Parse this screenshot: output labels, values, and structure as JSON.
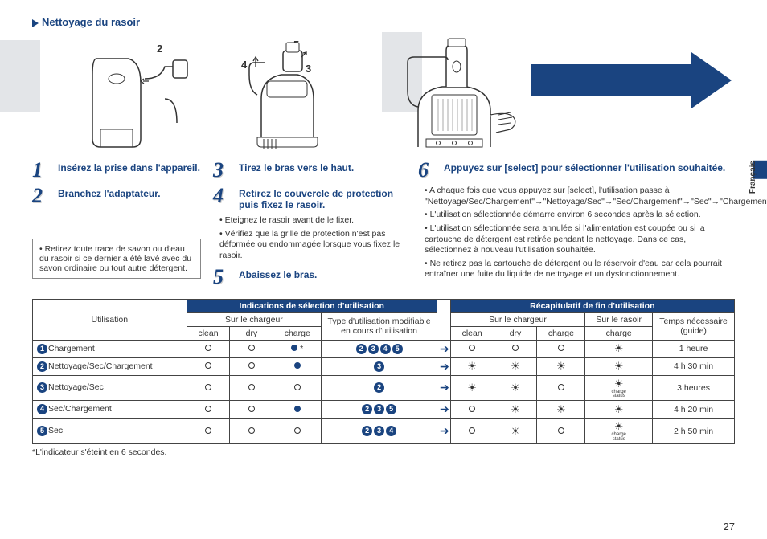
{
  "title": "Nettoyage du rasoir",
  "language_tab": "Français",
  "page_number": "27",
  "illus_labels": {
    "n1": "1",
    "n2": "2",
    "n3": "3",
    "n4": "4",
    "n5": "5"
  },
  "steps": {
    "s1": {
      "num": "1",
      "text": "Insérez la prise dans l'appareil."
    },
    "s2": {
      "num": "2",
      "text": "Branchez l'adaptateur."
    },
    "s3": {
      "num": "3",
      "text": "Tirez le bras vers le haut."
    },
    "s4": {
      "num": "4",
      "text": "Retirez le couvercle de protection puis fixez le rasoir."
    },
    "s5": {
      "num": "5",
      "text": "Abaissez le bras."
    },
    "s6": {
      "num": "6",
      "text": "Appuyez sur [select] pour sélectionner l'utilisation souhaitée."
    }
  },
  "note_box": "Retirez toute trace de savon ou d'eau du rasoir si ce dernier a été lavé avec du savon ordinaire ou tout autre détergent.",
  "col2_bullets": [
    "Eteignez le rasoir avant de le fixer.",
    "Vérifiez que la grille de protection n'est pas déformée ou endommagée lorsque vous fixez le rasoir."
  ],
  "col3_bullets": [
    "A chaque fois que vous appuyez sur [select], l'utilisation passe à \"Nettoyage/Sec/Chargement\"→\"Nettoyage/Sec\"→\"Sec/Chargement\"→\"Sec\"→\"Chargement\".",
    "L'utilisation sélectionnée démarre environ 6 secondes après la sélection.",
    "L'utilisation sélectionnée sera annulée si l'alimentation est coupée ou si la cartouche de détergent est retirée pendant le nettoyage. Dans ce cas, sélectionnez à nouveau l'utilisation souhaitée.",
    "Ne retirez pas la cartouche de détergent ou le réservoir d'eau car cela pourrait entraîner une fuite du liquide de nettoyage et un dysfonctionnement."
  ],
  "table": {
    "header_left": "Indications de sélection d'utilisation",
    "header_right": "Récapitulatif de fin d'utilisation",
    "utilisation": "Utilisation",
    "sur_chargeur": "Sur le chargeur",
    "type_util": "Type d'utilisation modifiable en cours d'utilisation",
    "sur_rasoir": "Sur le rasoir",
    "temps": "Temps nécessaire (guide)",
    "clean": "clean",
    "dry": "dry",
    "charge": "charge",
    "rows": [
      {
        "num": "1",
        "label": "Chargement",
        "c1": "o",
        "c2": "o",
        "c3": "f*",
        "mod": "2345",
        "d1": "o",
        "d2": "o",
        "d3": "o",
        "r": "sun",
        "time": "1 heure"
      },
      {
        "num": "2",
        "label": "Nettoyage/Sec/Chargement",
        "c1": "o",
        "c2": "o",
        "c3": "f",
        "mod": "3",
        "d1": "sun",
        "d2": "sun",
        "d3": "sun",
        "r": "sun",
        "time": "4 h 30 min"
      },
      {
        "num": "3",
        "label": "Nettoyage/Sec",
        "c1": "o",
        "c2": "o",
        "c3": "o",
        "mod": "2",
        "d1": "sun",
        "d2": "sun",
        "d3": "o",
        "r": "sunc",
        "time": "3 heures"
      },
      {
        "num": "4",
        "label": "Sec/Chargement",
        "c1": "o",
        "c2": "o",
        "c3": "f",
        "mod": "235",
        "d1": "o",
        "d2": "sun",
        "d3": "sun",
        "r": "sun",
        "time": "4 h 20 min"
      },
      {
        "num": "5",
        "label": "Sec",
        "c1": "o",
        "c2": "o",
        "c3": "o",
        "mod": "234",
        "d1": "o",
        "d2": "sun",
        "d3": "o",
        "r": "sunc",
        "time": "2 h 50 min"
      }
    ]
  },
  "footnote": "*L'indicateur s'éteint en 6 secondes."
}
